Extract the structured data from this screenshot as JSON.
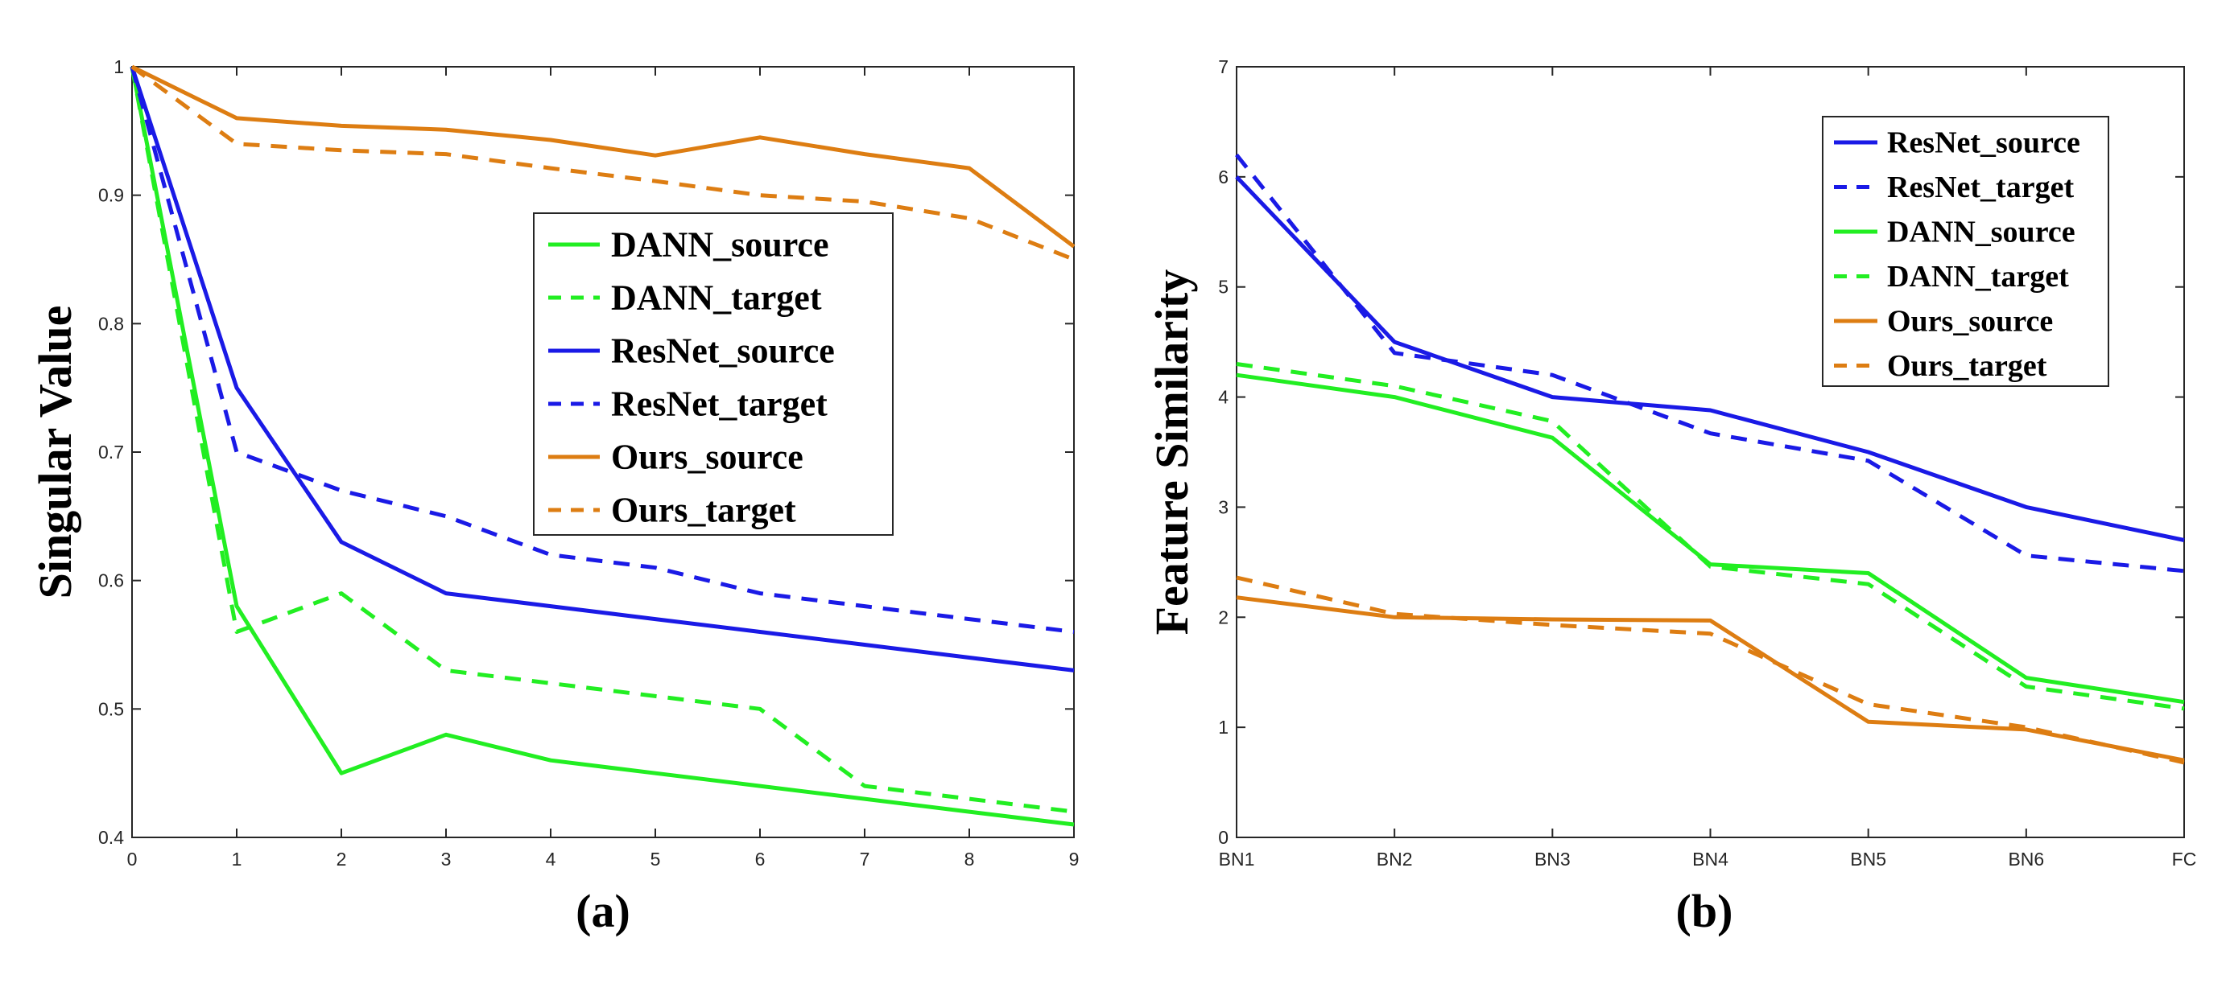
{
  "chart_data": [
    {
      "type": "line",
      "panel_label": "(a)",
      "ylabel": "Singular Value",
      "xlabel": "",
      "x": [
        0,
        1,
        2,
        3,
        4,
        5,
        6,
        7,
        8,
        9
      ],
      "xlim": [
        0,
        9
      ],
      "ylim": [
        0.4,
        1
      ],
      "xticks": [
        "0",
        "1",
        "2",
        "3",
        "4",
        "5",
        "6",
        "7",
        "8",
        "9"
      ],
      "yticks": [
        "0.4",
        "0.5",
        "0.6",
        "0.7",
        "0.8",
        "0.9",
        "1"
      ],
      "ytick_values": [
        0.4,
        0.5,
        0.6,
        0.7,
        0.8,
        0.9,
        1.0
      ],
      "legend_position": "center-right",
      "series": [
        {
          "name": "DANN_source",
          "color": "#22ee22",
          "dash": "solid",
          "values": [
            1.0,
            0.58,
            0.45,
            0.48,
            0.46,
            0.45,
            0.44,
            0.43,
            0.42,
            0.41
          ]
        },
        {
          "name": "DANN_target",
          "color": "#22ee22",
          "dash": "dashed",
          "values": [
            1.0,
            0.56,
            0.59,
            0.53,
            0.52,
            0.51,
            0.5,
            0.44,
            0.43,
            0.42
          ]
        },
        {
          "name": "ResNet_source",
          "color": "#1a1ae6",
          "dash": "solid",
          "values": [
            1.0,
            0.75,
            0.63,
            0.59,
            0.58,
            0.57,
            0.56,
            0.55,
            0.54,
            0.53
          ]
        },
        {
          "name": "ResNet_target",
          "color": "#1a1ae6",
          "dash": "dashed",
          "values": [
            1.0,
            0.7,
            0.67,
            0.65,
            0.62,
            0.61,
            0.59,
            0.58,
            0.57,
            0.56
          ]
        },
        {
          "name": "Ours_source",
          "color": "#dd7d12",
          "dash": "solid",
          "values": [
            1.0,
            0.96,
            0.954,
            0.951,
            0.943,
            0.931,
            0.945,
            0.932,
            0.921,
            0.86
          ]
        },
        {
          "name": "Ours_target",
          "color": "#dd7d12",
          "dash": "dashed",
          "values": [
            1.0,
            0.94,
            0.935,
            0.932,
            0.921,
            0.911,
            0.9,
            0.895,
            0.882,
            0.85
          ]
        }
      ]
    },
    {
      "type": "line",
      "panel_label": "(b)",
      "ylabel": "Feature Similarity",
      "xlabel": "",
      "categories": [
        "BN1",
        "BN2",
        "BN3",
        "BN4",
        "BN5",
        "BN6",
        "FC"
      ],
      "xticks": [
        "BN1",
        "BN2",
        "BN3",
        "BN4",
        "BN5",
        "BN6",
        "FC"
      ],
      "ylim": [
        0,
        7
      ],
      "yticks": [
        "0",
        "1",
        "2",
        "3",
        "4",
        "5",
        "6",
        "7"
      ],
      "ytick_values": [
        0,
        1,
        2,
        3,
        4,
        5,
        6,
        7
      ],
      "legend_position": "top-right",
      "series": [
        {
          "name": "ResNet_source",
          "color": "#1a1ae6",
          "dash": "solid",
          "values": [
            6.0,
            4.5,
            4.0,
            3.88,
            3.5,
            3.0,
            2.7
          ]
        },
        {
          "name": "ResNet_target",
          "color": "#1a1ae6",
          "dash": "dashed",
          "values": [
            6.2,
            4.4,
            4.2,
            3.67,
            3.42,
            2.56,
            2.42
          ]
        },
        {
          "name": "DANN_source",
          "color": "#22ee22",
          "dash": "solid",
          "values": [
            4.2,
            4.0,
            3.63,
            2.48,
            2.4,
            1.45,
            1.23
          ]
        },
        {
          "name": "DANN_target",
          "color": "#22ee22",
          "dash": "dashed",
          "values": [
            4.3,
            4.1,
            3.78,
            2.46,
            2.3,
            1.37,
            1.17
          ]
        },
        {
          "name": "Ours_source",
          "color": "#dd7d12",
          "dash": "solid",
          "values": [
            2.18,
            2.0,
            1.98,
            1.97,
            1.05,
            0.98,
            0.7
          ]
        },
        {
          "name": "Ours_target",
          "color": "#dd7d12",
          "dash": "dashed",
          "values": [
            2.36,
            2.03,
            1.93,
            1.85,
            1.21,
            1.0,
            0.68
          ]
        }
      ]
    }
  ]
}
